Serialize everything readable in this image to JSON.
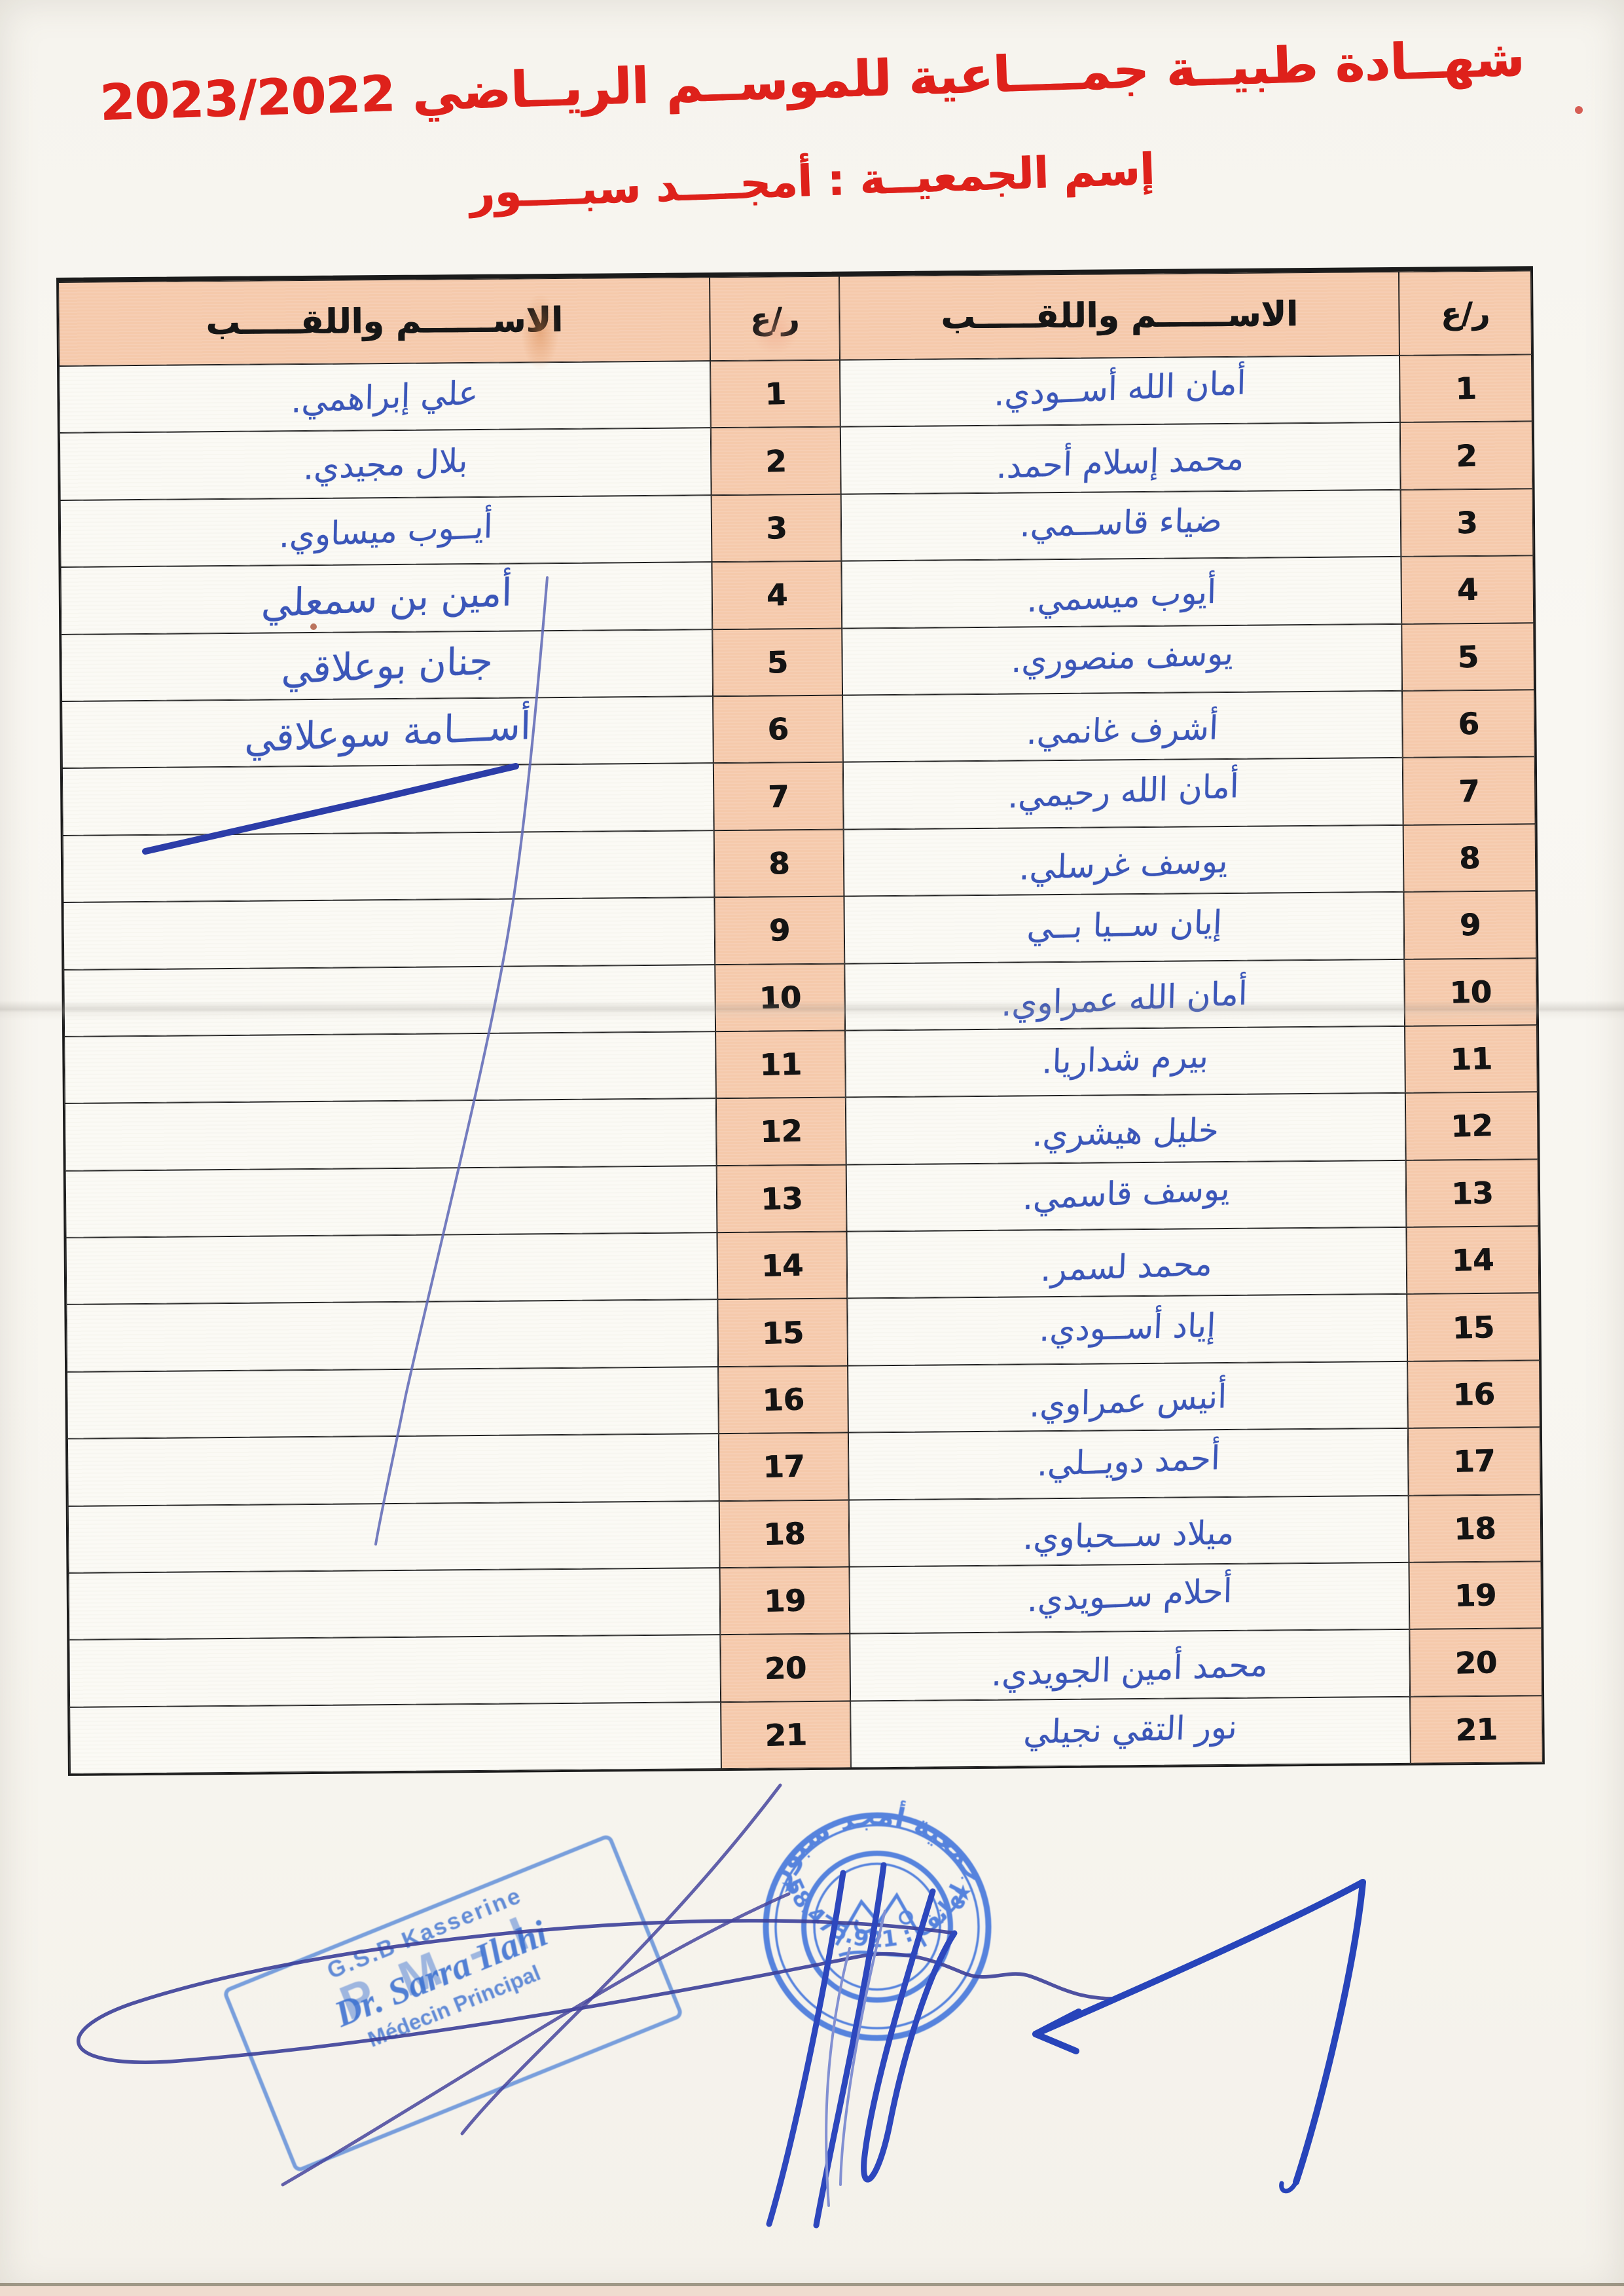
{
  "page": {
    "title_line1": "شهــادة طبيــة جمــــاعية للموســم الريــاضي 2023/2022",
    "title_line2": "إسم الجمعيــة : أمجــــد سبــــور",
    "accent_red": "#de211b",
    "paper_color": "#f7f5ef"
  },
  "table": {
    "header": {
      "name_label": "الاســــــم واللقـــــب",
      "num_label": "ر/ع"
    },
    "header_bg": "#f5c9ab",
    "row_bg": "#fbfaf5",
    "border_color": "#1b1b1b",
    "ink_color": "#2b49b4",
    "rows": [
      {
        "num": "1",
        "right_name": "أمان الله أســودي.",
        "left_name": "علي إبراهمي."
      },
      {
        "num": "2",
        "right_name": "محمد إسلام أحمد.",
        "left_name": "بلال مجيدي."
      },
      {
        "num": "3",
        "right_name": "ضياء قاســمي.",
        "left_name": "أيــوب ميساوي."
      },
      {
        "num": "4",
        "right_name": "أيوب ميسمي.",
        "left_name": "أمين بن سمعلي"
      },
      {
        "num": "5",
        "right_name": "يوسف منصوري.",
        "left_name": "جنان بوعلاقي"
      },
      {
        "num": "6",
        "right_name": "أشرف غانمي.",
        "left_name": "أســـامة سوعلاقي"
      },
      {
        "num": "7",
        "right_name": "أمان الله رحيمي.",
        "left_name": ""
      },
      {
        "num": "8",
        "right_name": "يوسف غرسلي.",
        "left_name": ""
      },
      {
        "num": "9",
        "right_name": "إيان ســيا بــي",
        "left_name": ""
      },
      {
        "num": "10",
        "right_name": "أمان الله عمراوي.",
        "left_name": ""
      },
      {
        "num": "11",
        "right_name": "بيرم شداريا.",
        "left_name": ""
      },
      {
        "num": "12",
        "right_name": "خليل هيشري.",
        "left_name": ""
      },
      {
        "num": "13",
        "right_name": "يوسف قاسمي.",
        "left_name": ""
      },
      {
        "num": "14",
        "right_name": "محمد لسمر.",
        "left_name": ""
      },
      {
        "num": "15",
        "right_name": "إياد أســودي.",
        "left_name": ""
      },
      {
        "num": "16",
        "right_name": "أنيس عمراوي.",
        "left_name": ""
      },
      {
        "num": "17",
        "right_name": "أحمد دويــلي.",
        "left_name": ""
      },
      {
        "num": "18",
        "right_name": "ميلاد ســحباوي.",
        "left_name": ""
      },
      {
        "num": "19",
        "right_name": "أحلام ســويدي.",
        "left_name": ""
      },
      {
        "num": "20",
        "right_name": "محمد أمين الجويدي.",
        "left_name": ""
      },
      {
        "num": "21",
        "right_name": "نور التقي نجيلي",
        "left_name": ""
      }
    ]
  },
  "stamps": {
    "rect_stamp": {
      "line1": "G.S.B Kasserine",
      "line2": "P M - I",
      "line3": "Dr. Sarra Ilahi",
      "line4": "Médecin Principal",
      "color": "#487ed6"
    },
    "round_stamp": {
      "top_text": "جمعية أمجد سبور",
      "bottom_text": "الهاتف : 58.475.921",
      "star": "★",
      "color": "#4577dc"
    }
  }
}
